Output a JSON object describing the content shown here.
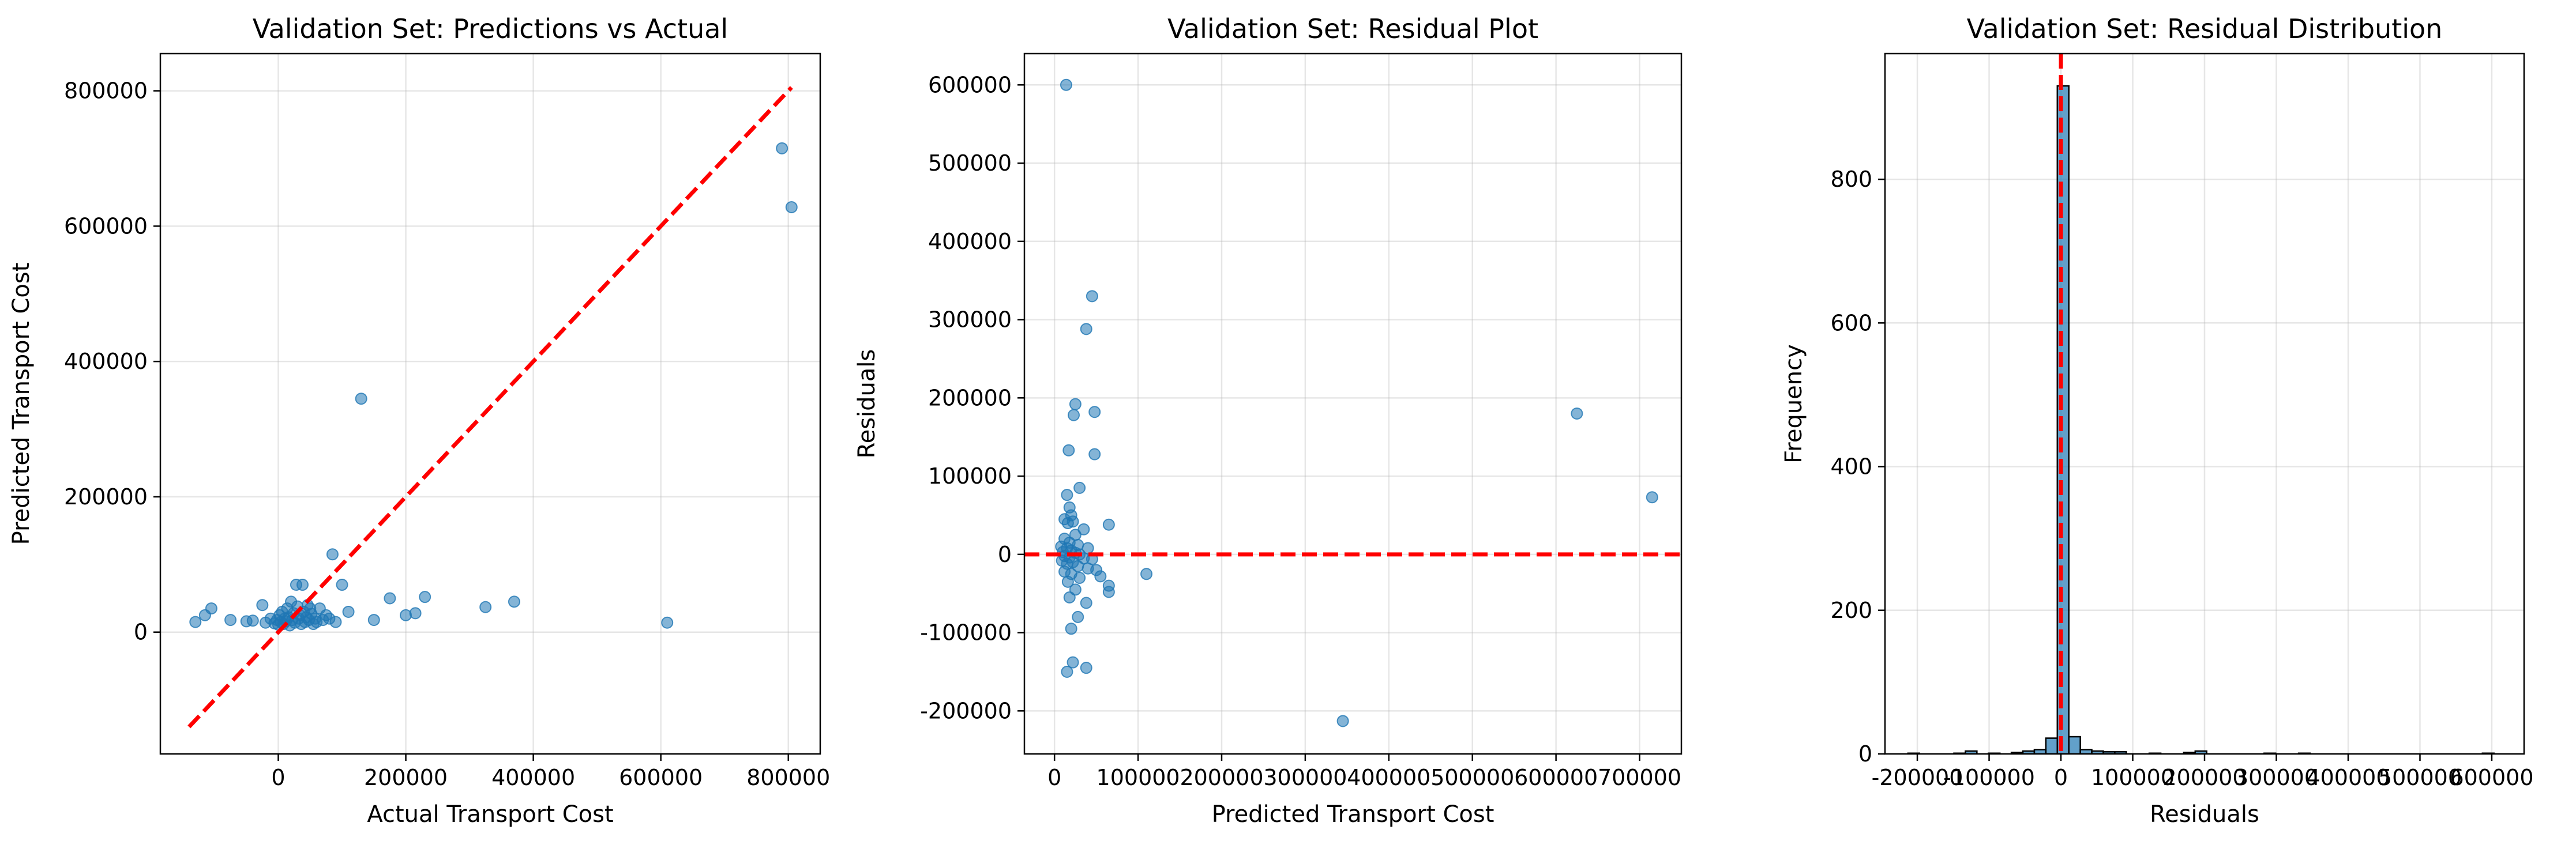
{
  "colors": {
    "points": "#1f77b4",
    "reference": "#ff0000",
    "bars": "#1f77b4",
    "bar_edge": "#000000"
  },
  "chart_data": [
    {
      "type": "scatter",
      "title": "Validation Set: Predictions vs Actual",
      "xlabel": "Actual Transport Cost",
      "ylabel": "Predicted Transport Cost",
      "xlim": [
        -185000,
        850000
      ],
      "ylim": [
        -180000,
        855000
      ],
      "xticks": [
        0,
        200000,
        400000,
        600000,
        800000
      ],
      "yticks": [
        0,
        200000,
        400000,
        600000,
        800000
      ],
      "grid": true,
      "reference_line": {
        "style": "dashed",
        "from": [
          -140000,
          -140000
        ],
        "to": [
          805000,
          805000
        ]
      },
      "points": [
        [
          -130000,
          15000
        ],
        [
          -115000,
          25000
        ],
        [
          -105000,
          35000
        ],
        [
          -75000,
          18000
        ],
        [
          -50000,
          16000
        ],
        [
          -40000,
          17000
        ],
        [
          -25000,
          40000
        ],
        [
          -20000,
          14000
        ],
        [
          -12000,
          20000
        ],
        [
          -6000,
          13000
        ],
        [
          -2000,
          18000
        ],
        [
          0,
          11000
        ],
        [
          2000,
          25000
        ],
        [
          4000,
          15000
        ],
        [
          6000,
          30000
        ],
        [
          8000,
          12000
        ],
        [
          10000,
          20000
        ],
        [
          12000,
          16000
        ],
        [
          14000,
          35000
        ],
        [
          16000,
          22000
        ],
        [
          18000,
          10000
        ],
        [
          20000,
          45000
        ],
        [
          22000,
          18000
        ],
        [
          24000,
          28000
        ],
        [
          26000,
          14000
        ],
        [
          28000,
          70000
        ],
        [
          30000,
          38000
        ],
        [
          32000,
          20000
        ],
        [
          34000,
          25000
        ],
        [
          36000,
          12000
        ],
        [
          38000,
          70000
        ],
        [
          40000,
          30000
        ],
        [
          42000,
          15000
        ],
        [
          44000,
          22000
        ],
        [
          46000,
          40000
        ],
        [
          48000,
          18000
        ],
        [
          50000,
          35000
        ],
        [
          52000,
          27000
        ],
        [
          55000,
          12000
        ],
        [
          58000,
          20000
        ],
        [
          60000,
          15000
        ],
        [
          65000,
          35000
        ],
        [
          70000,
          18000
        ],
        [
          75000,
          25000
        ],
        [
          80000,
          20000
        ],
        [
          85000,
          115000
        ],
        [
          90000,
          15000
        ],
        [
          100000,
          70000
        ],
        [
          110000,
          30000
        ],
        [
          130000,
          345000
        ],
        [
          150000,
          18000
        ],
        [
          175000,
          50000
        ],
        [
          200000,
          25000
        ],
        [
          215000,
          28000
        ],
        [
          230000,
          52000
        ],
        [
          325000,
          37000
        ],
        [
          370000,
          45000
        ],
        [
          610000,
          14000
        ],
        [
          790000,
          715000
        ],
        [
          805000,
          628000
        ]
      ]
    },
    {
      "type": "scatter",
      "title": "Validation Set: Residual Plot",
      "xlabel": "Predicted Transport Cost",
      "ylabel": "Residuals",
      "xlim": [
        -36000,
        750000
      ],
      "ylim": [
        -255000,
        640000
      ],
      "xticks": [
        0,
        100000,
        200000,
        300000,
        400000,
        500000,
        600000,
        700000
      ],
      "yticks": [
        -200000,
        -100000,
        0,
        100000,
        200000,
        300000,
        400000,
        500000,
        600000
      ],
      "grid": true,
      "reference_line": {
        "style": "dashed",
        "y": 0
      },
      "points": [
        [
          14000,
          600000
        ],
        [
          45000,
          330000
        ],
        [
          38000,
          288000
        ],
        [
          25000,
          192000
        ],
        [
          48000,
          182000
        ],
        [
          23000,
          178000
        ],
        [
          17000,
          133000
        ],
        [
          48000,
          128000
        ],
        [
          30000,
          85000
        ],
        [
          15000,
          76000
        ],
        [
          18000,
          60000
        ],
        [
          20000,
          50000
        ],
        [
          12000,
          45000
        ],
        [
          22000,
          42000
        ],
        [
          16000,
          40000
        ],
        [
          65000,
          38000
        ],
        [
          35000,
          32000
        ],
        [
          25000,
          25000
        ],
        [
          12000,
          20000
        ],
        [
          18000,
          15000
        ],
        [
          28000,
          12000
        ],
        [
          8000,
          10000
        ],
        [
          15000,
          8000
        ],
        [
          40000,
          8000
        ],
        [
          20000,
          5000
        ],
        [
          10000,
          3000
        ],
        [
          25000,
          2000
        ],
        [
          30000,
          0
        ],
        [
          12000,
          -2000
        ],
        [
          18000,
          -4000
        ],
        [
          35000,
          -5000
        ],
        [
          45000,
          -6000
        ],
        [
          9000,
          -8000
        ],
        [
          22000,
          -10000
        ],
        [
          15000,
          -12000
        ],
        [
          28000,
          -15000
        ],
        [
          40000,
          -18000
        ],
        [
          50000,
          -20000
        ],
        [
          12000,
          -22000
        ],
        [
          20000,
          -25000
        ],
        [
          55000,
          -28000
        ],
        [
          110000,
          -25000
        ],
        [
          30000,
          -30000
        ],
        [
          16000,
          -35000
        ],
        [
          65000,
          -40000
        ],
        [
          25000,
          -45000
        ],
        [
          65000,
          -48000
        ],
        [
          18000,
          -55000
        ],
        [
          38000,
          -62000
        ],
        [
          28000,
          -80000
        ],
        [
          20000,
          -95000
        ],
        [
          22000,
          -138000
        ],
        [
          38000,
          -145000
        ],
        [
          15000,
          -150000
        ],
        [
          345000,
          -213000
        ],
        [
          625000,
          180000
        ],
        [
          715000,
          73000
        ]
      ]
    },
    {
      "type": "bar",
      "title": "Validation Set: Residual Distribution",
      "xlabel": "Residuals",
      "ylabel": "Frequency",
      "xlim": [
        -245000,
        645000
      ],
      "ylim": [
        0,
        975
      ],
      "xticks": [
        -200000,
        -100000,
        0,
        100000,
        200000,
        300000,
        400000,
        500000,
        600000
      ],
      "yticks": [
        0,
        200,
        400,
        600,
        800
      ],
      "grid": true,
      "reference_line": {
        "style": "dashed",
        "x": 0
      },
      "bin_width": 16000,
      "bins": [
        [
          -213000,
          1
        ],
        [
          -149000,
          1
        ],
        [
          -133000,
          4
        ],
        [
          -101000,
          1
        ],
        [
          -69000,
          2
        ],
        [
          -53000,
          4
        ],
        [
          -37000,
          6
        ],
        [
          -21000,
          22
        ],
        [
          -5000,
          930
        ],
        [
          11000,
          24
        ],
        [
          27000,
          6
        ],
        [
          43000,
          4
        ],
        [
          59000,
          3
        ],
        [
          75000,
          3
        ],
        [
          123000,
          1
        ],
        [
          171000,
          2
        ],
        [
          187000,
          4
        ],
        [
          283000,
          1
        ],
        [
          331000,
          1
        ],
        [
          587000,
          1
        ]
      ]
    }
  ]
}
